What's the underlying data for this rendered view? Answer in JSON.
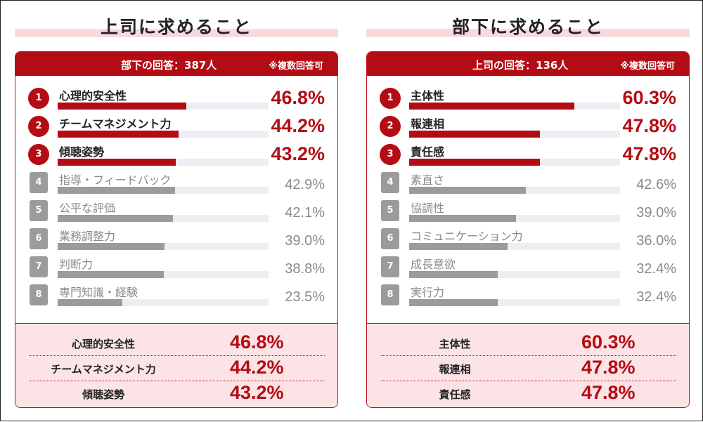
{
  "colors": {
    "accent": "#b40c14",
    "grey": "#9b9b9b",
    "track": "#eceef3",
    "pink": "#fbe3e6",
    "title_band": "#f9d9dd"
  },
  "chart_data": [
    {
      "type": "bar",
      "title": "上司に求めること",
      "respondents": "部下の回答：387人",
      "note": "※複数回答可",
      "ranks": [
        "1",
        "2",
        "3",
        "4",
        "5",
        "6",
        "7",
        "8"
      ],
      "categories": [
        "心理的安全性",
        "チームマネジメント力",
        "傾聴姿勢",
        "指導・フィードバック",
        "公平な評価",
        "業務調整力",
        "判断力",
        "専門知識・経験"
      ],
      "values": [
        46.8,
        44.2,
        43.2,
        42.9,
        42.1,
        39.0,
        38.8,
        23.5
      ],
      "value_labels": [
        "46.8%",
        "44.2%",
        "43.2%",
        "42.9%",
        "42.1%",
        "39.0%",
        "38.8%",
        "23.5%"
      ],
      "ylim": [
        0,
        100
      ],
      "summary": [
        {
          "label": "心理的安全性",
          "value": "46.8%"
        },
        {
          "label": "チームマネジメント力",
          "value": "44.2%"
        },
        {
          "label": "傾聴姿勢",
          "value": "43.2%"
        }
      ]
    },
    {
      "type": "bar",
      "title": "部下に求めること",
      "respondents": "上司の回答：136人",
      "note": "※複数回答可",
      "ranks": [
        "1",
        "2",
        "3",
        "4",
        "5",
        "6",
        "7",
        "8"
      ],
      "categories": [
        "主体性",
        "報連相",
        "責任感",
        "素直さ",
        "協調性",
        "コミュニケーション力",
        "成長意欲",
        "実行力"
      ],
      "values": [
        60.3,
        47.8,
        47.8,
        42.6,
        39.0,
        36.0,
        32.4,
        32.4
      ],
      "value_labels": [
        "60.3%",
        "47.8%",
        "47.8%",
        "42.6%",
        "39.0%",
        "36.0%",
        "32.4%",
        "32.4%"
      ],
      "ylim": [
        0,
        100
      ],
      "summary": [
        {
          "label": "主体性",
          "value": "60.3%"
        },
        {
          "label": "報連相",
          "value": "47.8%"
        },
        {
          "label": "責任感",
          "value": "47.8%"
        }
      ]
    }
  ]
}
